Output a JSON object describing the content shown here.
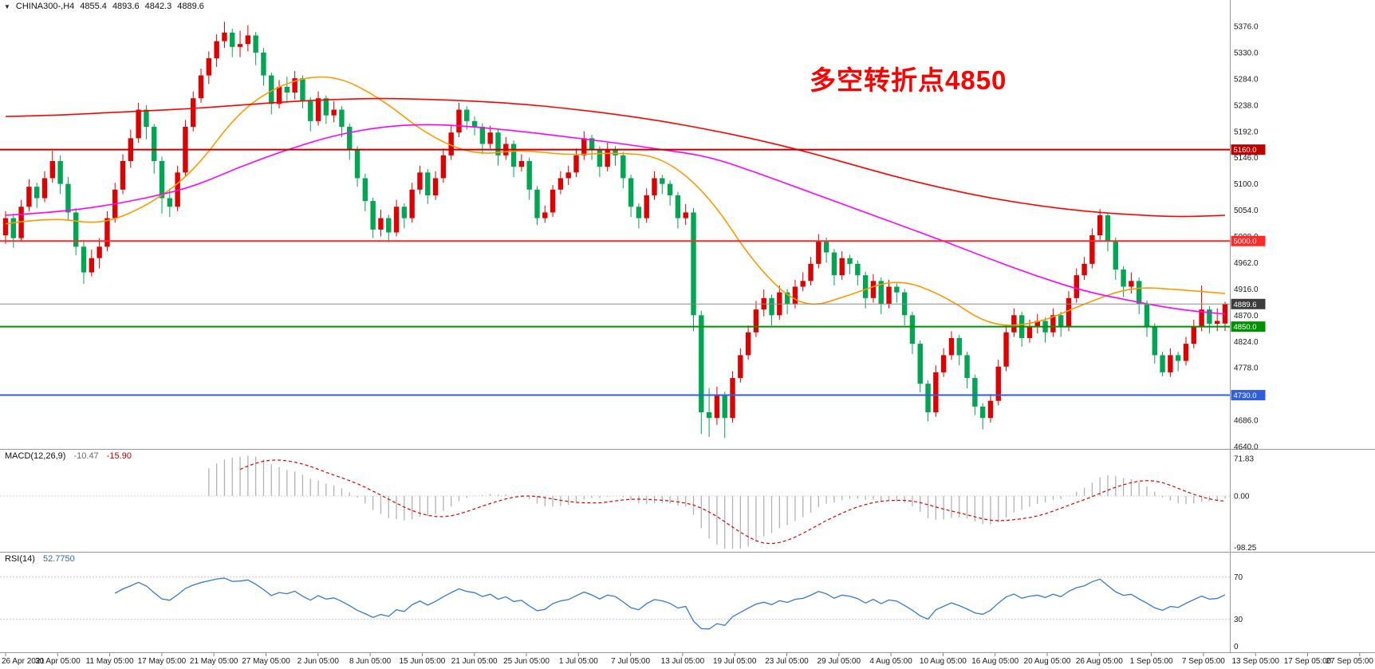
{
  "window": {
    "bg": "#ffffff"
  },
  "header": {
    "dropdown_icon": "▼",
    "symbol_period": "CHINA300-,H4",
    "open": "4855.4",
    "high": "4893.6",
    "low": "4842.3",
    "close": "4889.6"
  },
  "annotation": {
    "text": "多空转折点4850",
    "color": "#ff0000"
  },
  "price_axis": {
    "max": 5376,
    "min": 4640,
    "step": 46,
    "ticks": [
      "5376.0",
      "5330.0",
      "5284.0",
      "5238.0",
      "5192.0",
      "5146.0",
      "5100.0",
      "5054.0",
      "5008.0",
      "4962.0",
      "4916.0",
      "4870.0",
      "4824.0",
      "4778.0",
      "4732.0",
      "4686.0",
      "4640.0"
    ]
  },
  "hlines": [
    {
      "price": 5160,
      "label": "5160.0",
      "color": "#c00000",
      "width": 2
    },
    {
      "price": 5000,
      "label": "5000.0",
      "color": "#ff2a2a",
      "width": 2
    },
    {
      "price": 4850,
      "label": "4850.0",
      "color": "#009100",
      "width": 2
    },
    {
      "price": 4730,
      "label": "4730.0",
      "color": "#2f5fe0",
      "width": 2
    }
  ],
  "current_price": {
    "value": 4889.6,
    "label": "4889.6",
    "line_color": "#8a8a8a",
    "badge_bg": "#3c3c3c"
  },
  "time_axis": {
    "labels": [
      "26 Apr 2021",
      "30 Apr 05:00",
      "11 May 05:00",
      "17 May 05:00",
      "21 May 05:00",
      "27 May 05:00",
      "2 Jun 05:00",
      "8 Jun 05:00",
      "15 Jun 05:00",
      "21 Jun 05:00",
      "25 Jun 05:00",
      "1 Jul 05:00",
      "7 Jul 05:00",
      "13 Jul 05:00",
      "19 Jul 05:00",
      "23 Jul 05:00",
      "29 Jul 05:00",
      "4 Aug 05:00",
      "10 Aug 05:00",
      "16 Aug 05:00",
      "20 Aug 05:00",
      "26 Aug 05:00",
      "1 Sep 05:00",
      "7 Sep 05:00",
      "13 Sep 05:00",
      "17 Sep 05:00",
      "27 Sep 05:00"
    ]
  },
  "macd_panel": {
    "title": "MACD(12,26,9)",
    "value_main": "-10.47",
    "value_signal": "-15.90",
    "axis_labels": [
      "71.83",
      "0.00",
      "-98.25"
    ],
    "axis_values": [
      71.83,
      0,
      -98.25
    ],
    "histogram_color": "#b3b3b3",
    "signal_color": "#dd0000"
  },
  "rsi_panel": {
    "title": "RSI(14)",
    "value": "52.7750",
    "axis_labels": [
      "70",
      "30",
      "0"
    ],
    "axis_values": [
      70,
      30,
      0
    ],
    "levels": [
      70,
      30
    ],
    "line_color": "#3579d8"
  },
  "chart_data": {
    "type": "candlestick",
    "symbol": "CHINA300-",
    "timeframe": "H4",
    "title": "CHINA300- H4 candlestick chart with MACD(12,26,9) and RSI(14)",
    "ylim": [
      4640,
      5376
    ],
    "bars_per_label": 6,
    "up_color": "#df0000",
    "down_color": "#00a651",
    "x_labels": [
      "26 Apr 2021",
      "30 Apr 05:00",
      "11 May 05:00",
      "17 May 05:00",
      "21 May 05:00",
      "27 May 05:00",
      "2 Jun 05:00",
      "8 Jun 05:00",
      "15 Jun 05:00",
      "21 Jun 05:00",
      "25 Jun 05:00",
      "1 Jul 05:00",
      "7 Jul 05:00",
      "13 Jul 05:00",
      "19 Jul 05:00",
      "23 Jul 05:00",
      "29 Jul 05:00",
      "4 Aug 05:00",
      "10 Aug 05:00",
      "16 Aug 05:00",
      "20 Aug 05:00",
      "26 Aug 05:00",
      "1 Sep 05:00",
      "7 Sep 05:00",
      "13 Sep 05:00",
      "17 Sep 05:00",
      "27 Sep 05:00"
    ],
    "ohlc": [
      [
        5010,
        5052,
        4995,
        5040
      ],
      [
        5040,
        5048,
        4988,
        5005
      ],
      [
        5005,
        5072,
        5000,
        5060
      ],
      [
        5060,
        5108,
        5052,
        5095
      ],
      [
        5095,
        5102,
        5058,
        5075
      ],
      [
        5075,
        5122,
        5068,
        5110
      ],
      [
        5110,
        5158,
        5102,
        5140
      ],
      [
        5140,
        5150,
        5082,
        5100
      ],
      [
        5100,
        5112,
        5035,
        5050
      ],
      [
        5050,
        5058,
        4975,
        4990
      ],
      [
        4990,
        5002,
        4925,
        4945
      ],
      [
        4945,
        4985,
        4938,
        4970
      ],
      [
        4970,
        5005,
        4952,
        4990
      ],
      [
        4990,
        5052,
        4982,
        5040
      ],
      [
        5040,
        5102,
        5032,
        5090
      ],
      [
        5090,
        5152,
        5082,
        5140
      ],
      [
        5140,
        5195,
        5128,
        5180
      ],
      [
        5180,
        5242,
        5172,
        5230
      ],
      [
        5230,
        5238,
        5178,
        5200
      ],
      [
        5200,
        5205,
        5118,
        5140
      ],
      [
        5140,
        5148,
        5048,
        5075
      ],
      [
        5075,
        5092,
        5042,
        5060
      ],
      [
        5060,
        5132,
        5052,
        5120
      ],
      [
        5120,
        5212,
        5112,
        5200
      ],
      [
        5200,
        5262,
        5192,
        5250
      ],
      [
        5250,
        5302,
        5242,
        5290
      ],
      [
        5290,
        5332,
        5275,
        5320
      ],
      [
        5320,
        5362,
        5305,
        5350
      ],
      [
        5350,
        5384,
        5338,
        5365
      ],
      [
        5365,
        5372,
        5322,
        5340
      ],
      [
        5340,
        5368,
        5322,
        5345
      ],
      [
        5345,
        5378,
        5332,
        5360
      ],
      [
        5360,
        5366,
        5308,
        5330
      ],
      [
        5330,
        5338,
        5272,
        5290
      ],
      [
        5290,
        5295,
        5222,
        5240
      ],
      [
        5240,
        5282,
        5232,
        5270
      ],
      [
        5270,
        5288,
        5242,
        5260
      ],
      [
        5260,
        5298,
        5248,
        5285
      ],
      [
        5285,
        5290,
        5232,
        5245
      ],
      [
        5245,
        5252,
        5192,
        5210
      ],
      [
        5210,
        5262,
        5202,
        5250
      ],
      [
        5250,
        5255,
        5205,
        5220
      ],
      [
        5220,
        5245,
        5208,
        5230
      ],
      [
        5230,
        5236,
        5182,
        5200
      ],
      [
        5200,
        5206,
        5142,
        5160
      ],
      [
        5160,
        5166,
        5095,
        5110
      ],
      [
        5110,
        5118,
        5052,
        5070
      ],
      [
        5070,
        5076,
        5005,
        5020
      ],
      [
        5020,
        5055,
        5008,
        5040
      ],
      [
        5040,
        5046,
        4998,
        5015
      ],
      [
        5015,
        5072,
        5008,
        5060
      ],
      [
        5060,
        5066,
        5022,
        5040
      ],
      [
        5040,
        5102,
        5032,
        5090
      ],
      [
        5090,
        5132,
        5082,
        5120
      ],
      [
        5120,
        5126,
        5065,
        5080
      ],
      [
        5080,
        5122,
        5072,
        5110
      ],
      [
        5110,
        5162,
        5102,
        5150
      ],
      [
        5150,
        5202,
        5142,
        5190
      ],
      [
        5190,
        5242,
        5182,
        5230
      ],
      [
        5230,
        5236,
        5195,
        5210
      ],
      [
        5210,
        5218,
        5185,
        5200
      ],
      [
        5200,
        5206,
        5152,
        5170
      ],
      [
        5170,
        5202,
        5162,
        5190
      ],
      [
        5190,
        5196,
        5132,
        5150
      ],
      [
        5150,
        5182,
        5142,
        5170
      ],
      [
        5170,
        5176,
        5112,
        5130
      ],
      [
        5130,
        5152,
        5122,
        5140
      ],
      [
        5140,
        5146,
        5072,
        5090
      ],
      [
        5090,
        5096,
        5028,
        5040
      ],
      [
        5040,
        5062,
        5032,
        5050
      ],
      [
        5050,
        5098,
        5042,
        5090
      ],
      [
        5090,
        5122,
        5082,
        5110
      ],
      [
        5110,
        5132,
        5098,
        5120
      ],
      [
        5120,
        5162,
        5112,
        5150
      ],
      [
        5150,
        5192,
        5142,
        5180
      ],
      [
        5180,
        5186,
        5142,
        5160
      ],
      [
        5160,
        5166,
        5112,
        5130
      ],
      [
        5130,
        5172,
        5122,
        5160
      ],
      [
        5160,
        5166,
        5132,
        5150
      ],
      [
        5150,
        5156,
        5092,
        5110
      ],
      [
        5110,
        5116,
        5042,
        5060
      ],
      [
        5060,
        5066,
        5022,
        5040
      ],
      [
        5040,
        5092,
        5032,
        5080
      ],
      [
        5080,
        5122,
        5072,
        5110
      ],
      [
        5110,
        5116,
        5082,
        5100
      ],
      [
        5100,
        5106,
        5062,
        5080
      ],
      [
        5080,
        5086,
        5022,
        5040
      ],
      [
        5040,
        5065,
        5028,
        5050
      ],
      [
        5050,
        5058,
        4842,
        4870
      ],
      [
        4870,
        4878,
        4662,
        4700
      ],
      [
        4700,
        4742,
        4657,
        4690
      ],
      [
        4690,
        4745,
        4678,
        4730
      ],
      [
        4730,
        4736,
        4655,
        4690
      ],
      [
        4690,
        4772,
        4682,
        4760
      ],
      [
        4760,
        4812,
        4752,
        4800
      ],
      [
        4800,
        4852,
        4792,
        4840
      ],
      [
        4840,
        4895,
        4832,
        4880
      ],
      [
        4880,
        4915,
        4868,
        4900
      ],
      [
        4900,
        4906,
        4852,
        4870
      ],
      [
        4870,
        4922,
        4862,
        4910
      ],
      [
        4910,
        4916,
        4872,
        4890
      ],
      [
        4890,
        4932,
        4882,
        4920
      ],
      [
        4920,
        4945,
        4912,
        4930
      ],
      [
        4930,
        4972,
        4922,
        4960
      ],
      [
        4960,
        5012,
        4952,
        5000
      ],
      [
        5000,
        5006,
        4962,
        4980
      ],
      [
        4980,
        4986,
        4922,
        4940
      ],
      [
        4940,
        4982,
        4932,
        4970
      ],
      [
        4970,
        4976,
        4942,
        4960
      ],
      [
        4960,
        4966,
        4922,
        4940
      ],
      [
        4940,
        4946,
        4882,
        4900
      ],
      [
        4900,
        4942,
        4892,
        4930
      ],
      [
        4930,
        4936,
        4872,
        4890
      ],
      [
        4890,
        4932,
        4882,
        4920
      ],
      [
        4920,
        4926,
        4892,
        4910
      ],
      [
        4910,
        4916,
        4852,
        4870
      ],
      [
        4870,
        4876,
        4802,
        4820
      ],
      [
        4820,
        4826,
        4735,
        4750
      ],
      [
        4750,
        4756,
        4684,
        4700
      ],
      [
        4700,
        4782,
        4692,
        4770
      ],
      [
        4770,
        4812,
        4762,
        4800
      ],
      [
        4800,
        4842,
        4792,
        4830
      ],
      [
        4830,
        4836,
        4782,
        4800
      ],
      [
        4800,
        4806,
        4742,
        4760
      ],
      [
        4760,
        4766,
        4695,
        4710
      ],
      [
        4710,
        4716,
        4670,
        4690
      ],
      [
        4690,
        4732,
        4682,
        4720
      ],
      [
        4720,
        4792,
        4712,
        4780
      ],
      [
        4780,
        4852,
        4772,
        4840
      ],
      [
        4840,
        4882,
        4832,
        4870
      ],
      [
        4870,
        4876,
        4815,
        4830
      ],
      [
        4830,
        4862,
        4822,
        4850
      ],
      [
        4850,
        4872,
        4838,
        4860
      ],
      [
        4860,
        4866,
        4822,
        4840
      ],
      [
        4840,
        4882,
        4832,
        4870
      ],
      [
        4870,
        4876,
        4832,
        4850
      ],
      [
        4850,
        4912,
        4842,
        4900
      ],
      [
        4900,
        4952,
        4892,
        4940
      ],
      [
        4940,
        4972,
        4932,
        4960
      ],
      [
        4960,
        5022,
        4952,
        5010
      ],
      [
        5010,
        5056,
        5002,
        5045
      ],
      [
        5045,
        5050,
        4982,
        5000
      ],
      [
        5000,
        5006,
        4932,
        4950
      ],
      [
        4950,
        4956,
        4902,
        4920
      ],
      [
        4920,
        4945,
        4908,
        4930
      ],
      [
        4930,
        4936,
        4872,
        4890
      ],
      [
        4890,
        4896,
        4832,
        4850
      ],
      [
        4850,
        4856,
        4785,
        4800
      ],
      [
        4800,
        4806,
        4763,
        4770
      ],
      [
        4770,
        4812,
        4762,
        4800
      ],
      [
        4800,
        4806,
        4772,
        4790
      ],
      [
        4790,
        4832,
        4782,
        4820
      ],
      [
        4820,
        4862,
        4812,
        4850
      ],
      [
        4850,
        4922,
        4842,
        4880
      ],
      [
        4880,
        4886,
        4838,
        4855
      ],
      [
        4855,
        4882,
        4842,
        4860
      ],
      [
        4855.4,
        4893.6,
        4842.3,
        4889.6
      ]
    ],
    "overlays": [
      {
        "name": "ma-fast",
        "color": "#ff9900",
        "values": [
          5030,
          5042,
          5028,
          5060,
          5120,
          5230,
          5280,
          5292,
          5250,
          5185,
          5150,
          5160,
          5150,
          5155,
          5148,
          5080,
          4955,
          4880,
          4905,
          4935,
          4905,
          4850,
          4855,
          4890,
          4920,
          4915,
          4908
        ]
      },
      {
        "name": "ma-medium",
        "color": "#ff00ff",
        "values": [
          5045,
          5050,
          5060,
          5075,
          5095,
          5130,
          5160,
          5185,
          5200,
          5205,
          5200,
          5192,
          5182,
          5172,
          5160,
          5148,
          5120,
          5090,
          5060,
          5030,
          5000,
          4968,
          4938,
          4912,
          4895,
          4880,
          4872
        ]
      },
      {
        "name": "ma-slow",
        "color": "#ff0000",
        "values": [
          5218,
          5220,
          5224,
          5228,
          5232,
          5238,
          5244,
          5248,
          5250,
          5248,
          5245,
          5240,
          5232,
          5222,
          5210,
          5195,
          5178,
          5158,
          5135,
          5112,
          5092,
          5075,
          5062,
          5052,
          5046,
          5042,
          5045
        ]
      }
    ],
    "indicators": [
      {
        "name": "MACD",
        "params": "12,26,9",
        "shown_values": [
          -10.47,
          -15.9
        ],
        "scale": [
          71.83,
          0,
          -98.25
        ]
      },
      {
        "name": "RSI",
        "params": "14",
        "shown_value": 52.775,
        "levels": [
          70,
          30,
          0
        ]
      }
    ]
  }
}
